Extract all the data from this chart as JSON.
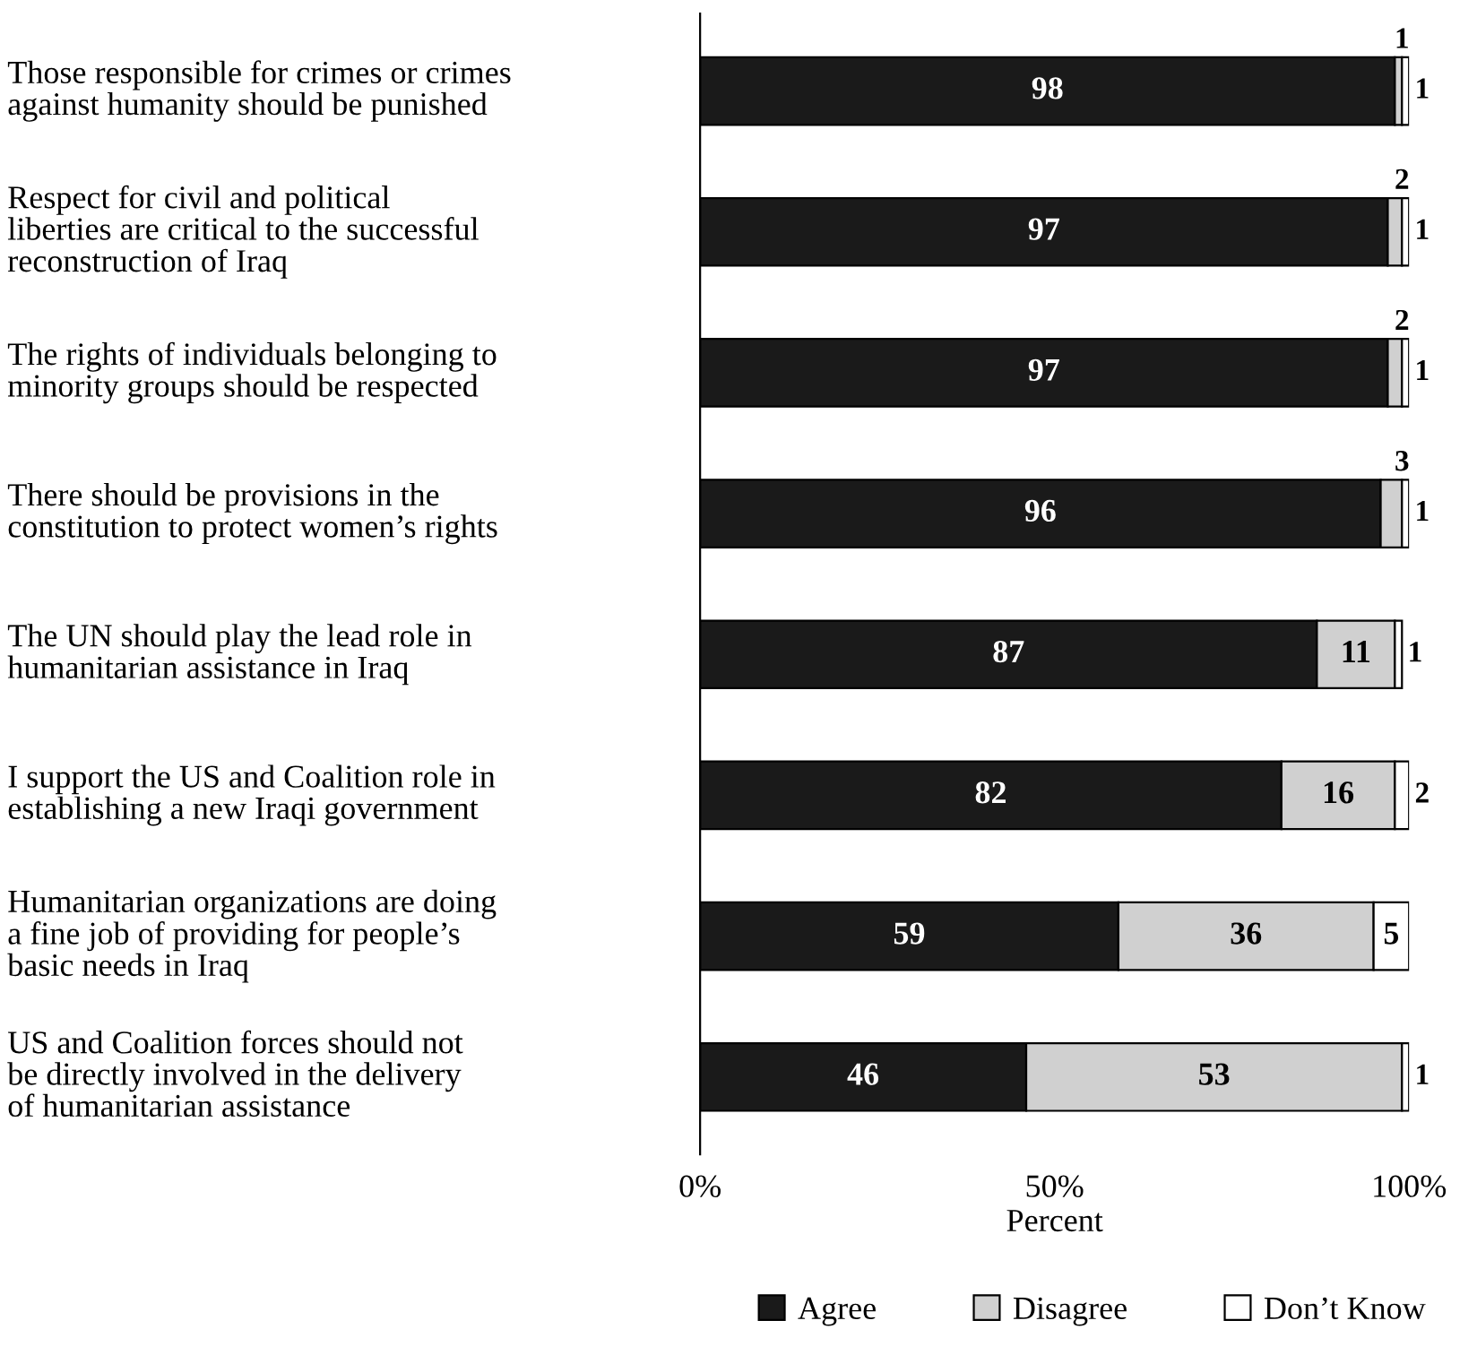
{
  "chart_data": {
    "type": "bar",
    "orientation": "horizontal",
    "stacked": true,
    "xlabel": "Percent",
    "categories": [
      "Those responsible for crimes or crimes\nagainst humanity should be punished",
      "Respect for civil and political\nliberties are critical to the successful\nreconstruction of Iraq",
      "The rights of individuals belonging to\nminority groups should be respected",
      "There should be provisions in the\nconstitution to protect women’s rights",
      "The UN should play the lead role in\nhumanitarian assistance in Iraq",
      "I support the US and Coalition role in\nestablishing a new Iraqi government",
      "Humanitarian organizations are doing\na fine job of providing for people’s\nbasic needs in Iraq",
      "US and Coalition forces should not\nbe directly involved in the delivery\nof humanitarian assistance"
    ],
    "series": [
      {
        "name": "Agree",
        "color": "#1a1a1a",
        "values": [
          98,
          97,
          97,
          96,
          87,
          82,
          59,
          46
        ]
      },
      {
        "name": "Disagree",
        "color": "#d0d0d0",
        "values": [
          1,
          2,
          2,
          3,
          11,
          16,
          36,
          53
        ]
      },
      {
        "name": "Don’t Know",
        "color": "#ffffff",
        "values": [
          1,
          1,
          1,
          1,
          1,
          2,
          5,
          1
        ]
      }
    ],
    "xlim": [
      0,
      100
    ],
    "xticks": [
      {
        "value": 0,
        "label": "0%"
      },
      {
        "value": 50,
        "label": "50%"
      },
      {
        "value": 100,
        "label": "100%"
      }
    ],
    "data_labels": true,
    "legend": "bottom right",
    "grid": false
  }
}
